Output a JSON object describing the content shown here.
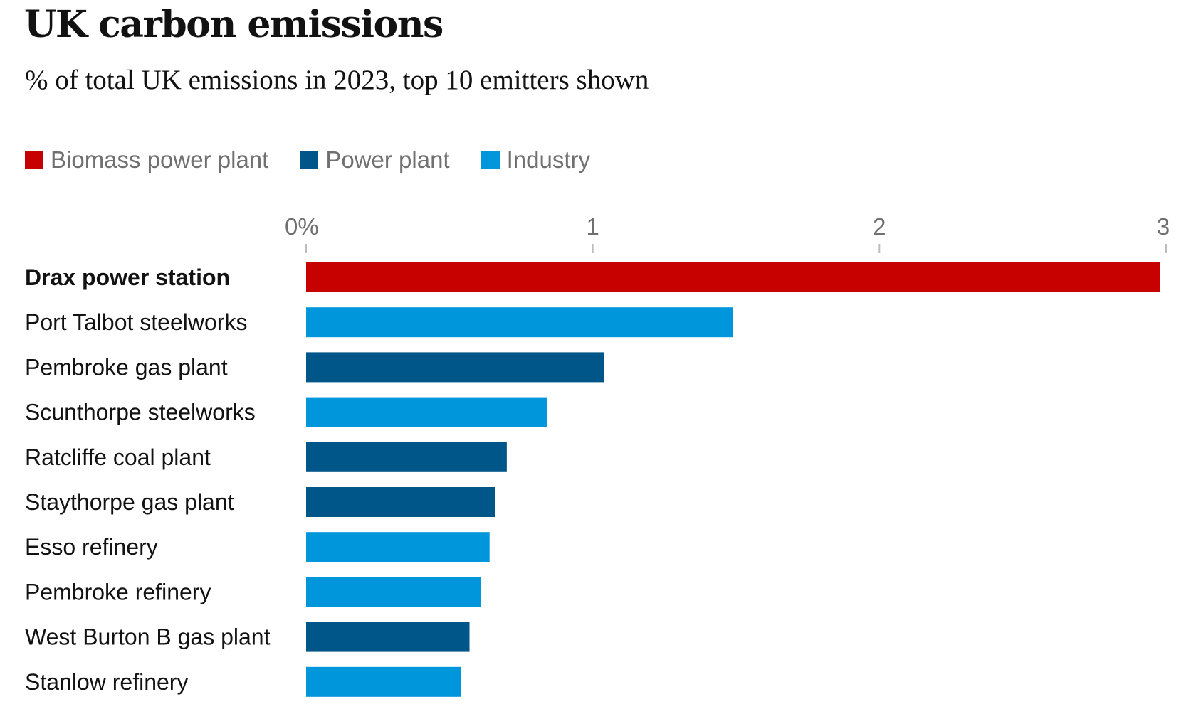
{
  "chart_data": {
    "type": "bar",
    "orientation": "horizontal",
    "title": "UK carbon emissions",
    "subtitle": "% of total UK emissions in 2023, top 10 emitters shown",
    "xlim": [
      0,
      3
    ],
    "x_ticks": [
      {
        "value": 0,
        "label": "0%"
      },
      {
        "value": 1,
        "label": "1"
      },
      {
        "value": 2,
        "label": "2"
      },
      {
        "value": 3,
        "label": "3"
      }
    ],
    "legend": [
      {
        "name": "Biomass power plant",
        "color": "#c70000"
      },
      {
        "name": "Power plant",
        "color": "#005689"
      },
      {
        "name": "Industry",
        "color": "#0096dc"
      }
    ],
    "legend_position": "top-left",
    "grid": false,
    "bars": [
      {
        "label": "Drax power station",
        "value": 2.98,
        "type": "Biomass power plant",
        "bold": true
      },
      {
        "label": "Port Talbot steelworks",
        "value": 1.49,
        "type": "Industry"
      },
      {
        "label": "Pembroke gas plant",
        "value": 1.04,
        "type": "Power plant"
      },
      {
        "label": "Scunthorpe steelworks",
        "value": 0.84,
        "type": "Industry"
      },
      {
        "label": "Ratcliffe coal plant",
        "value": 0.7,
        "type": "Power plant"
      },
      {
        "label": "Staythorpe gas plant",
        "value": 0.66,
        "type": "Power plant"
      },
      {
        "label": "Esso refinery",
        "value": 0.64,
        "type": "Industry"
      },
      {
        "label": "Pembroke refinery",
        "value": 0.61,
        "type": "Industry"
      },
      {
        "label": "West Burton B gas plant",
        "value": 0.57,
        "type": "Power plant"
      },
      {
        "label": "Stanlow refinery",
        "value": 0.54,
        "type": "Industry"
      }
    ]
  }
}
